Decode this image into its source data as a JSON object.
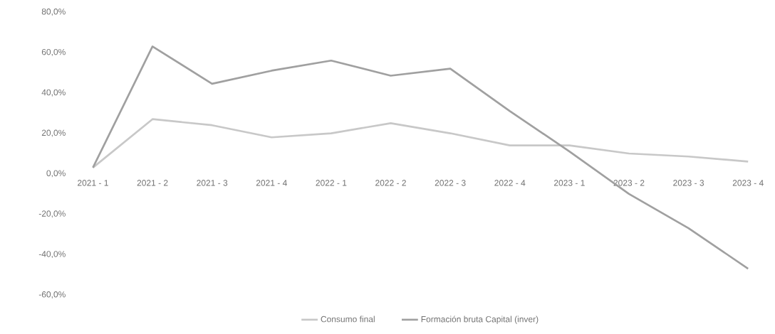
{
  "chart_data": {
    "type": "line",
    "categories": [
      "2021 - 1",
      "2021 - 2",
      "2021 - 3",
      "2021 - 4",
      "2022 - 1",
      "2022 - 2",
      "2022 - 3",
      "2022 - 4",
      "2023 - 1",
      "2023 - 2",
      "2023 - 3",
      "2023 - 4"
    ],
    "series": [
      {
        "name": "Consumo final",
        "color": "#c8c8c8",
        "values": [
          3,
          27,
          24,
          18,
          20,
          25,
          20,
          14,
          14,
          10,
          8.5,
          6
        ]
      },
      {
        "name": "Formación bruta Capital (inver)",
        "color": "#a0a0a0",
        "values": [
          3,
          63,
          44.5,
          51,
          56,
          48.5,
          52,
          31,
          11,
          -10,
          -27,
          -47
        ]
      }
    ],
    "ylim": [
      -60,
      80
    ],
    "yticks": [
      {
        "value": -60,
        "label": "-60,0%"
      },
      {
        "value": -40,
        "label": "-40,0%"
      },
      {
        "value": -20,
        "label": "-20,0%"
      },
      {
        "value": 0,
        "label": "0,0%"
      },
      {
        "value": 20,
        "label": "20,0%"
      },
      {
        "value": 40,
        "label": "40,0%"
      },
      {
        "value": 60,
        "label": "60,0%"
      },
      {
        "value": 80,
        "label": "80,0%"
      }
    ],
    "grid": false,
    "legend": "bottom"
  }
}
